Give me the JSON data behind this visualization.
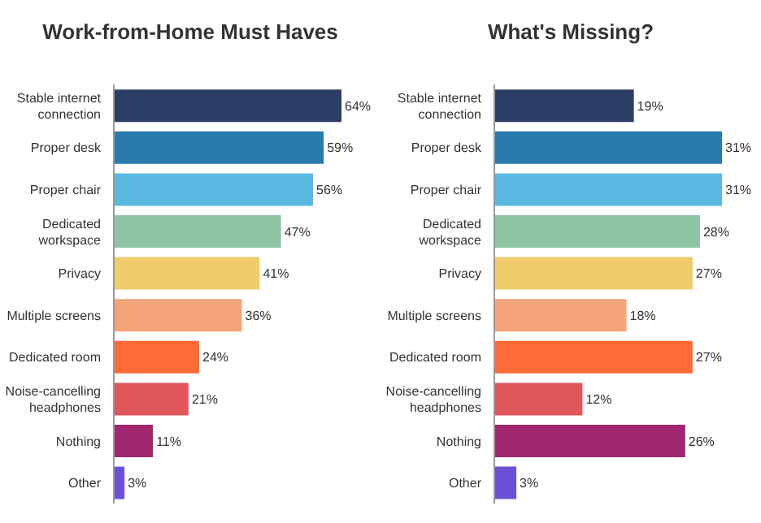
{
  "chart_data": [
    {
      "type": "bar",
      "orientation": "horizontal",
      "title": "Work-from-Home Must Haves",
      "categories": [
        "Stable internet connection",
        "Proper desk",
        "Proper chair",
        "Dedicated workspace",
        "Privacy",
        "Multiple screens",
        "Dedicated room",
        "Noise-cancelling headphones",
        "Nothing",
        "Other"
      ],
      "values": [
        64,
        59,
        56,
        47,
        41,
        36,
        24,
        21,
        11,
        3
      ],
      "value_labels": [
        "64%",
        "59%",
        "56%",
        "47%",
        "41%",
        "36%",
        "24%",
        "21%",
        "11%",
        "3%"
      ],
      "colors": [
        "#2d3e66",
        "#2a7bad",
        "#5bb9e1",
        "#8ec4a4",
        "#f0cc6b",
        "#f5a47b",
        "#ff6a36",
        "#e0565b",
        "#a0266f",
        "#6b4fd6"
      ],
      "tick_labels": "y",
      "grid": false,
      "legend": false
    },
    {
      "type": "bar",
      "orientation": "horizontal",
      "title": "What's Missing?",
      "categories": [
        "Stable internet connection",
        "Proper desk",
        "Proper chair",
        "Dedicated workspace",
        "Privacy",
        "Multiple screens",
        "Dedicated room",
        "Noise-cancelling headphones",
        "Nothing",
        "Other"
      ],
      "values": [
        19,
        31,
        31,
        28,
        27,
        18,
        27,
        12,
        26,
        3
      ],
      "value_labels": [
        "19%",
        "31%",
        "31%",
        "28%",
        "27%",
        "18%",
        "27%",
        "12%",
        "26%",
        "3%"
      ],
      "colors": [
        "#2d3e66",
        "#2a7bad",
        "#5bb9e1",
        "#8ec4a4",
        "#f0cc6b",
        "#f5a47b",
        "#ff6a36",
        "#e0565b",
        "#a0266f",
        "#6b4fd6"
      ],
      "tick_labels": "y",
      "grid": false,
      "legend": false
    }
  ]
}
